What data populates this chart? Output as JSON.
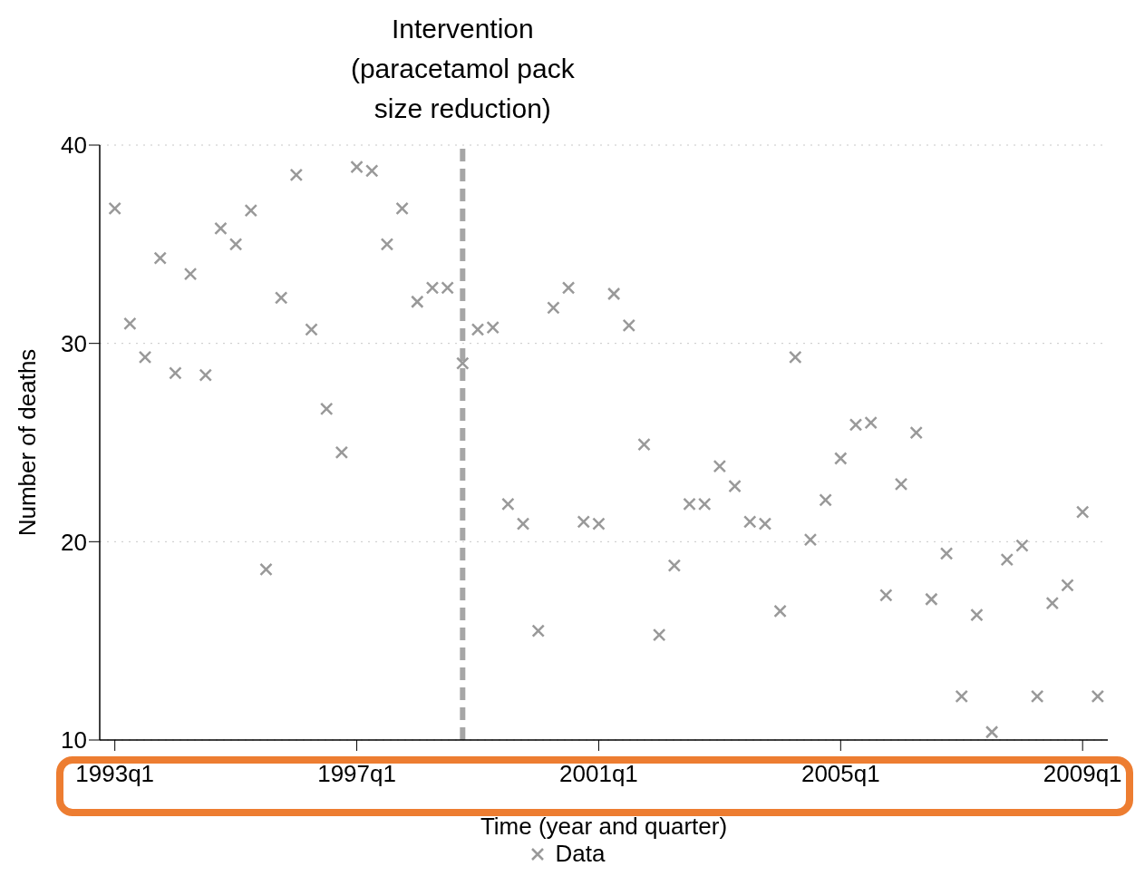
{
  "chart_data": {
    "type": "scatter",
    "xlabel": "Time (year and quarter)",
    "ylabel": "Number of deaths",
    "x": [
      "1993-01",
      "1993-04",
      "1993-07",
      "1993-10",
      "1994-01",
      "1994-04",
      "1994-07",
      "1994-10",
      "1995-01",
      "1995-04",
      "1995-07",
      "1995-10",
      "1996-01",
      "1996-04",
      "1996-07",
      "1996-10",
      "1997-01",
      "1997-04",
      "1997-07",
      "1997-10",
      "1998-01",
      "1998-04",
      "1998-07",
      "1998-10",
      "1999-01",
      "1999-04",
      "1999-07",
      "1999-10",
      "2000-01",
      "2000-04",
      "2000-07",
      "2000-10",
      "2001-01",
      "2001-04",
      "2001-07",
      "2001-10",
      "2002-01",
      "2002-04",
      "2002-07",
      "2002-10",
      "2003-01",
      "2003-04",
      "2003-07",
      "2003-10",
      "2004-01",
      "2004-04",
      "2004-07",
      "2004-10",
      "2005-01",
      "2005-04",
      "2005-07",
      "2005-10",
      "2006-01",
      "2006-04",
      "2006-07",
      "2006-10",
      "2007-01",
      "2007-04",
      "2007-07",
      "2007-10",
      "2008-01",
      "2008-04",
      "2008-07",
      "2008-10",
      "2009-01",
      "2009-04"
    ],
    "series": [
      {
        "name": "Data",
        "color": "#999999",
        "values": [
          36.8,
          31.0,
          29.3,
          34.3,
          28.5,
          33.5,
          28.4,
          35.8,
          35.0,
          36.7,
          18.6,
          32.3,
          38.5,
          30.7,
          26.7,
          24.5,
          38.9,
          38.7,
          35.0,
          36.8,
          32.1,
          32.8,
          32.8,
          29.0,
          30.7,
          30.8,
          21.9,
          20.9,
          15.5,
          31.8,
          32.8,
          21.0,
          20.9,
          32.5,
          30.9,
          24.9,
          15.3,
          18.8,
          21.9,
          21.9,
          23.8,
          22.8,
          21.0,
          20.9,
          16.5,
          29.3,
          20.1,
          22.1,
          24.2,
          25.9,
          26.0,
          17.3,
          22.9,
          25.5,
          17.1,
          19.4,
          12.2,
          16.3,
          10.4,
          19.1,
          19.8,
          12.2,
          16.9,
          17.8,
          21.5,
          12.2
        ]
      }
    ],
    "xlim": [
      "1992-10",
      "2009-06"
    ],
    "ylim": [
      10,
      40
    ],
    "xticks": [
      {
        "value": "1993-01",
        "label": "1993q1"
      },
      {
        "value": "1997-01",
        "label": "1997q1"
      },
      {
        "value": "2001-01",
        "label": "2001q1"
      },
      {
        "value": "2005-01",
        "label": "2005q1"
      },
      {
        "value": "2009-01",
        "label": "2009q1"
      }
    ],
    "yticks": [
      10,
      20,
      30,
      40
    ],
    "ref_lines": [
      {
        "axis": "x",
        "value": "1998-10",
        "label": "Intervention\n(paracetamol pack\nsize reduction)",
        "color": "#a6a6a6",
        "line_style": "dashed"
      }
    ],
    "grid": "y",
    "legend": "bottom",
    "marker": "cross"
  }
}
